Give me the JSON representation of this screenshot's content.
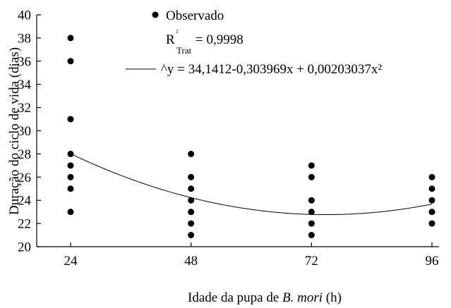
{
  "chart_data": {
    "type": "scatter",
    "title": "",
    "xlabel_prefix": "Idade da pupa de ",
    "xlabel_italic": "B. mori",
    "xlabel_suffix": " (h)",
    "ylabel": "Duração do ciclo de vida (dias)",
    "xticks": [
      24,
      48,
      72,
      96
    ],
    "yticks": [
      20,
      22,
      24,
      26,
      28,
      30,
      32,
      34,
      36,
      38,
      40
    ],
    "xlim": [
      24,
      96
    ],
    "ylim": [
      20,
      40
    ],
    "grid": false,
    "legend_position": "top-center",
    "series": [
      {
        "name": "Observado",
        "kind": "points",
        "points": [
          [
            24,
            38
          ],
          [
            24,
            36
          ],
          [
            24,
            31
          ],
          [
            24,
            28
          ],
          [
            24,
            27
          ],
          [
            24,
            26
          ],
          [
            24,
            25
          ],
          [
            24,
            23
          ],
          [
            48,
            28
          ],
          [
            48,
            26
          ],
          [
            48,
            25
          ],
          [
            48,
            24
          ],
          [
            48,
            23
          ],
          [
            48,
            22
          ],
          [
            48,
            21
          ],
          [
            72,
            27
          ],
          [
            72,
            26
          ],
          [
            72,
            24
          ],
          [
            72,
            23
          ],
          [
            72,
            22
          ],
          [
            72,
            21
          ],
          [
            96,
            26
          ],
          [
            96,
            25
          ],
          [
            96,
            24
          ],
          [
            96,
            23
          ],
          [
            96,
            22
          ]
        ]
      },
      {
        "name": "^y = 34,1412-0,303969x + 0,00203037x²",
        "kind": "fit",
        "coefficients": [
          34.1412,
          -0.303969,
          0.00203037
        ]
      }
    ],
    "legend": {
      "observed": "Observado",
      "r2_main": "R",
      "r2_sup": "²",
      "r2_sub": "Trat",
      "r2_value": "= 0,9998",
      "fit": "^y = 34,1412-0,303969x + 0,00203037x²"
    }
  }
}
